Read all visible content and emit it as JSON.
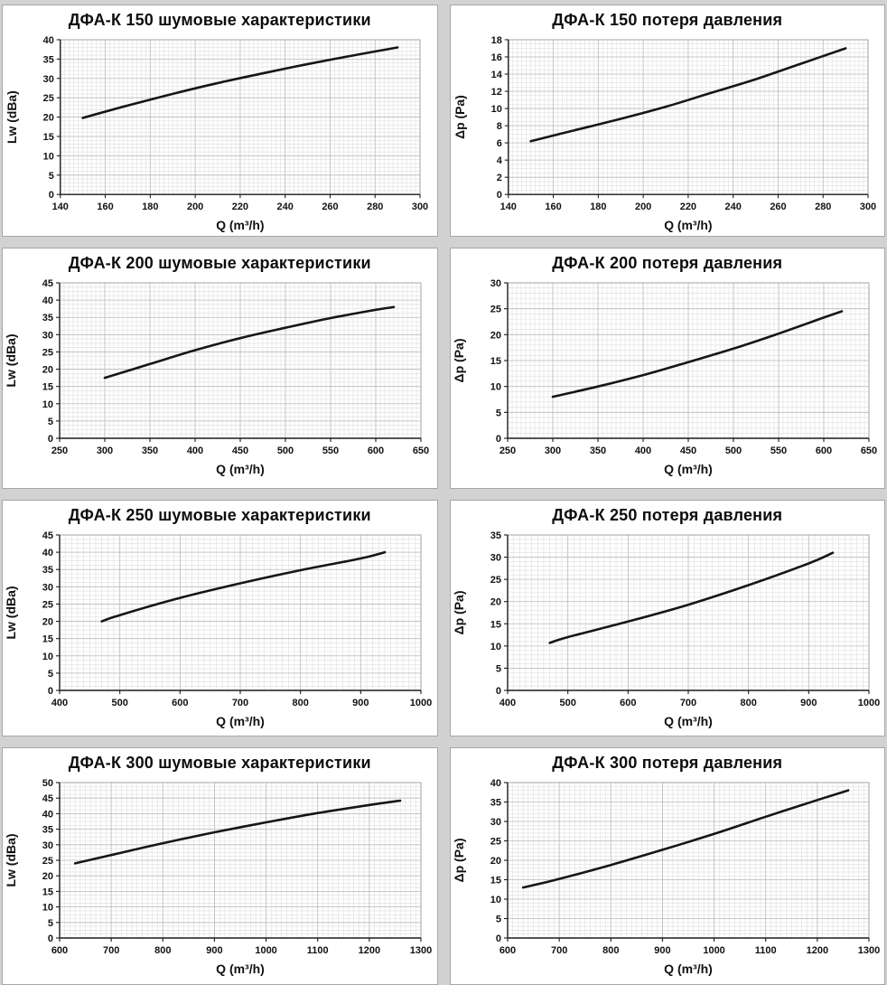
{
  "page": {
    "background_color": "#d2d2d2",
    "panel_background": "#ffffff",
    "panel_border_color": "#a6a6a6",
    "grid_minor_color": "#dedede",
    "grid_major_color": "#bcbcbc",
    "axis_color": "#1c1c1c"
  },
  "chart_data": [
    {
      "id": "dfa-k-150-noise",
      "type": "line",
      "title": "ДФА-К 150 шумовые характеристики",
      "xlabel": "Q (m³/h)",
      "ylabel": "Lw (dBa)",
      "xlim": [
        140,
        300
      ],
      "ylim": [
        0,
        40
      ],
      "xticks": [
        140,
        160,
        180,
        200,
        220,
        240,
        260,
        280,
        300
      ],
      "yticks": [
        0,
        5,
        10,
        15,
        20,
        25,
        30,
        35,
        40
      ],
      "grid": true,
      "legend": false,
      "line_color": "#161616",
      "x": [
        150,
        170,
        190,
        210,
        230,
        250,
        270,
        290
      ],
      "y": [
        19.8,
        23.0,
        26.0,
        28.8,
        31.3,
        33.7,
        35.9,
        38.0
      ]
    },
    {
      "id": "dfa-k-150-pressure",
      "type": "line",
      "title": "ДФА-К 150 потеря давления",
      "xlabel": "Q (m³/h)",
      "ylabel": "Δp (Pa)",
      "xlim": [
        140,
        300
      ],
      "ylim": [
        0,
        18
      ],
      "xticks": [
        140,
        160,
        180,
        200,
        220,
        240,
        260,
        280,
        300
      ],
      "yticks": [
        0,
        2,
        4,
        6,
        8,
        10,
        12,
        14,
        16,
        18
      ],
      "grid": true,
      "legend": false,
      "line_color": "#161616",
      "x": [
        150,
        170,
        190,
        210,
        230,
        250,
        270,
        290
      ],
      "y": [
        6.2,
        7.5,
        8.8,
        10.2,
        11.8,
        13.4,
        15.2,
        17.0
      ]
    },
    {
      "id": "dfa-k-200-noise",
      "type": "line",
      "title": "ДФА-К 200 шумовые характеристики",
      "xlabel": "Q (m³/h)",
      "ylabel": "Lw (dBa)",
      "xlim": [
        250,
        650
      ],
      "ylim": [
        0,
        45
      ],
      "xticks": [
        250,
        300,
        350,
        400,
        450,
        500,
        550,
        600,
        650
      ],
      "yticks": [
        0,
        5,
        10,
        15,
        20,
        25,
        30,
        35,
        40,
        45
      ],
      "grid": true,
      "legend": false,
      "line_color": "#161616",
      "x": [
        300,
        350,
        400,
        450,
        500,
        550,
        600,
        620
      ],
      "y": [
        17.5,
        21.5,
        25.5,
        29.0,
        32.0,
        34.8,
        37.2,
        38.0
      ]
    },
    {
      "id": "dfa-k-200-pressure",
      "type": "line",
      "title": "ДФА-К 200 потеря давления",
      "xlabel": "Q (m³/h)",
      "ylabel": "Δp (Pa)",
      "xlim": [
        250,
        650
      ],
      "ylim": [
        0,
        30
      ],
      "xticks": [
        250,
        300,
        350,
        400,
        450,
        500,
        550,
        600,
        650
      ],
      "yticks": [
        0,
        5,
        10,
        15,
        20,
        25,
        30
      ],
      "grid": true,
      "legend": false,
      "line_color": "#161616",
      "x": [
        300,
        350,
        400,
        450,
        500,
        550,
        600,
        620
      ],
      "y": [
        8.0,
        10.0,
        12.2,
        14.7,
        17.3,
        20.2,
        23.3,
        24.5
      ]
    },
    {
      "id": "dfa-k-250-noise",
      "type": "line",
      "title": "ДФА-К 250 шумовые характеристики",
      "xlabel": "Q (m³/h)",
      "ylabel": "Lw (dBa)",
      "xlim": [
        400,
        1000
      ],
      "ylim": [
        0,
        45
      ],
      "xticks": [
        400,
        500,
        600,
        700,
        800,
        900,
        1000
      ],
      "yticks": [
        0,
        5,
        10,
        15,
        20,
        25,
        30,
        35,
        40,
        45
      ],
      "grid": true,
      "legend": false,
      "line_color": "#161616",
      "x": [
        470,
        500,
        600,
        700,
        800,
        900,
        940
      ],
      "y": [
        20.0,
        21.8,
        26.8,
        31.0,
        34.8,
        38.2,
        40.0
      ]
    },
    {
      "id": "dfa-k-250-pressure",
      "type": "line",
      "title": "ДФА-К 250 потеря давления",
      "xlabel": "Q (m³/h)",
      "ylabel": "Δp (Pa)",
      "xlim": [
        400,
        1000
      ],
      "ylim": [
        0,
        35
      ],
      "xticks": [
        400,
        500,
        600,
        700,
        800,
        900,
        1000
      ],
      "yticks": [
        0,
        5,
        10,
        15,
        20,
        25,
        30,
        35
      ],
      "grid": true,
      "legend": false,
      "line_color": "#161616",
      "x": [
        470,
        500,
        600,
        700,
        800,
        900,
        940
      ],
      "y": [
        10.7,
        12.0,
        15.5,
        19.3,
        23.7,
        28.6,
        31.0
      ]
    },
    {
      "id": "dfa-k-300-noise",
      "type": "line",
      "title": "ДФА-К 300 шумовые характеристики",
      "xlabel": "Q (m³/h)",
      "ylabel": "Lw (dBa)",
      "xlim": [
        600,
        1300
      ],
      "ylim": [
        0,
        50
      ],
      "xticks": [
        600,
        700,
        800,
        900,
        1000,
        1100,
        1200,
        1300
      ],
      "yticks": [
        0,
        5,
        10,
        15,
        20,
        25,
        30,
        35,
        40,
        45,
        50
      ],
      "grid": true,
      "legend": false,
      "line_color": "#161616",
      "x": [
        630,
        700,
        800,
        900,
        1000,
        1100,
        1200,
        1260
      ],
      "y": [
        24.0,
        26.7,
        30.5,
        34.0,
        37.2,
        40.2,
        42.8,
        44.2
      ]
    },
    {
      "id": "dfa-k-300-pressure",
      "type": "line",
      "title": "ДФА-К 300 потеря давления",
      "xlabel": "Q (m³/h)",
      "ylabel": "Δp (Pa)",
      "xlim": [
        600,
        1300
      ],
      "ylim": [
        0,
        40
      ],
      "xticks": [
        600,
        700,
        800,
        900,
        1000,
        1100,
        1200,
        1300
      ],
      "yticks": [
        0,
        5,
        10,
        15,
        20,
        25,
        30,
        35,
        40
      ],
      "grid": true,
      "legend": false,
      "line_color": "#161616",
      "x": [
        630,
        700,
        800,
        900,
        1000,
        1100,
        1200,
        1260
      ],
      "y": [
        13.0,
        15.2,
        18.8,
        22.7,
        26.8,
        31.2,
        35.5,
        38.0
      ]
    }
  ]
}
